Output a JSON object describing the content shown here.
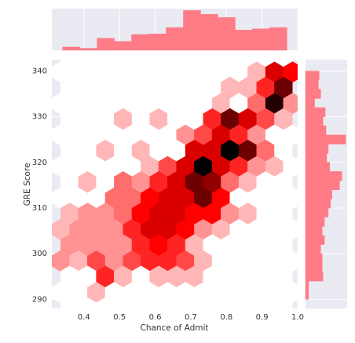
{
  "chart_data": [
    {
      "type": "hexbin",
      "xlabel": "Chance of Admit",
      "ylabel": "GRE Score",
      "xlim": [
        0.31,
        1.0
      ],
      "ylim": [
        288,
        342.5
      ],
      "xticks": [
        0.4,
        0.5,
        0.6,
        0.7,
        0.8,
        0.9,
        {
          "value": 1,
          "label": "1.0"
        }
      ],
      "yticks": [
        290,
        300,
        310,
        320,
        330,
        340
      ],
      "grid": true,
      "cmap": [
        "#ffffff",
        "#ff0000",
        "#000000"
      ],
      "x_a": [
        0.335,
        0.385,
        0.435,
        0.485,
        0.535,
        0.585,
        0.635,
        0.685,
        0.735,
        0.785,
        0.835,
        0.885,
        0.935,
        0.985
      ],
      "y_a": [
        339.8,
        332.9,
        326.0,
        319.1,
        312.2,
        305.3,
        298.4,
        291.5
      ],
      "counts_a": [
        [
          0,
          0,
          0,
          0,
          0,
          0,
          0,
          0,
          0,
          0,
          0,
          2,
          8,
          7
        ],
        [
          0,
          0,
          0,
          0,
          0,
          0,
          0,
          0,
          0,
          2,
          0,
          4,
          13,
          3
        ],
        [
          0,
          0,
          0,
          0,
          0,
          0,
          0,
          3,
          5,
          8,
          6,
          3,
          0,
          0
        ],
        [
          0,
          0,
          0,
          0,
          0,
          2,
          5,
          8,
          14,
          8,
          6,
          3,
          2,
          0
        ],
        [
          0,
          0,
          0,
          4,
          4,
          7,
          8,
          8,
          11,
          7,
          0,
          0,
          0,
          0
        ],
        [
          2,
          3,
          3,
          3,
          6,
          8,
          8,
          7,
          3,
          2,
          0,
          0,
          0,
          0
        ],
        [
          3,
          2,
          5,
          3,
          5,
          6,
          6,
          5,
          2,
          0,
          0,
          0,
          0,
          0
        ],
        [
          0,
          0,
          2,
          0,
          0,
          0,
          0,
          0,
          0,
          0,
          0,
          0,
          0,
          0
        ]
      ],
      "x_b": [
        0.36,
        0.41,
        0.46,
        0.51,
        0.56,
        0.61,
        0.66,
        0.71,
        0.76,
        0.81,
        0.86,
        0.91,
        0.96
      ],
      "y_b": [
        343.3,
        336.4,
        329.5,
        322.6,
        315.7,
        308.8,
        301.9,
        295.0,
        288.1
      ],
      "counts_b": [
        [
          0,
          0,
          0,
          0,
          0,
          0,
          0,
          0,
          0,
          0,
          0,
          0,
          0
        ],
        [
          0,
          0,
          0,
          0,
          0,
          0,
          0,
          0,
          0,
          2,
          2,
          6,
          11
        ],
        [
          0,
          0,
          0,
          2,
          0,
          2,
          0,
          0,
          6,
          11,
          8,
          5,
          2
        ],
        [
          0,
          0,
          2,
          0,
          2,
          0,
          0,
          8,
          8,
          14,
          11,
          4,
          0
        ],
        [
          0,
          2,
          0,
          4,
          3,
          6,
          8,
          11,
          10,
          4,
          2,
          0,
          0
        ],
        [
          2,
          3,
          3,
          4,
          7,
          8,
          8,
          7,
          7,
          3,
          2,
          0,
          0
        ],
        [
          3,
          3,
          3,
          3,
          6,
          7,
          6,
          2,
          0,
          0,
          0,
          0,
          0
        ],
        [
          0,
          0,
          6,
          2,
          0,
          2,
          2,
          2,
          0,
          0,
          0,
          0,
          0
        ],
        [
          0,
          0,
          0,
          0,
          0,
          0,
          0,
          0,
          0,
          0,
          0,
          0,
          0
        ]
      ]
    },
    {
      "type": "histogram",
      "orientation": "vertical",
      "color": "#ff7b86",
      "ylim": [
        0,
        66
      ],
      "bins": [
        0.34,
        0.3885,
        0.4369,
        0.4854,
        0.5338,
        0.5823,
        0.6308,
        0.6792,
        0.7277,
        0.7762,
        0.8246,
        0.8731,
        0.9215,
        0.97
      ],
      "values": [
        5,
        3,
        19,
        14,
        25,
        26,
        36,
        63,
        57,
        52,
        32,
        34,
        36
      ]
    },
    {
      "type": "histogram",
      "orientation": "horizontal",
      "color": "#ff7b86",
      "xlim": [
        0,
        55
      ],
      "bins": [
        290,
        292,
        294,
        296,
        298,
        300,
        302,
        304,
        306,
        308,
        310,
        312,
        314,
        316,
        318,
        320,
        322,
        324,
        326,
        328,
        330,
        332,
        334,
        336,
        338,
        340
      ],
      "values": [
        4,
        4,
        23,
        22,
        22,
        20,
        25,
        22,
        25,
        30,
        33,
        35,
        45,
        48,
        32,
        28,
        30,
        53,
        27,
        23,
        26,
        12,
        20,
        17,
        18
      ]
    }
  ]
}
